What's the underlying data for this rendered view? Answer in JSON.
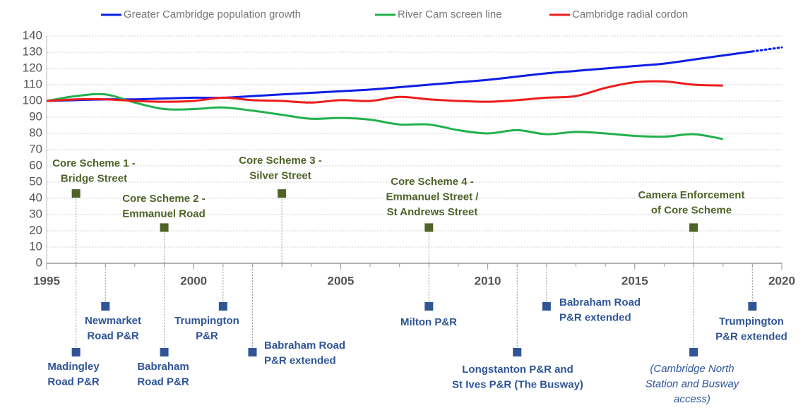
{
  "chart_data": {
    "type": "line",
    "x": [
      1995,
      1996,
      1997,
      1998,
      1999,
      2000,
      2001,
      2002,
      2003,
      2004,
      2005,
      2006,
      2007,
      2008,
      2009,
      2010,
      2011,
      2012,
      2013,
      2014,
      2015,
      2016,
      2017,
      2018,
      2019,
      2020
    ],
    "series": [
      {
        "name": "Greater Cambridge population growth",
        "color": "#0d1ee6",
        "dotted_after": 2019,
        "values": [
          100,
          100.5,
          101,
          101,
          101.5,
          102,
          102,
          103,
          104,
          105,
          106,
          107,
          108.5,
          110,
          111.5,
          113,
          115,
          117,
          118.5,
          120,
          121.5,
          123,
          125.5,
          128,
          130.5,
          133
        ]
      },
      {
        "name": "River Cam screen line",
        "color": "#22b14c",
        "values": [
          100,
          103,
          104,
          99,
          95,
          95,
          96,
          94,
          91.5,
          89,
          89.5,
          88.5,
          85.5,
          85.5,
          82,
          80,
          82,
          79.5,
          81,
          80,
          78.5,
          78,
          79.5,
          76.5,
          null,
          null
        ]
      },
      {
        "name": "Cambridge radial cordon",
        "color": "#ee1c1c",
        "values": [
          100,
          101,
          101,
          100,
          99.5,
          100,
          102,
          100.5,
          100,
          99,
          100.5,
          100,
          102.5,
          101,
          100,
          99.5,
          100.5,
          102,
          103,
          108,
          111.5,
          112,
          110,
          109.5,
          null,
          null
        ]
      }
    ],
    "xlim": [
      1995,
      2020
    ],
    "xticks": [
      1995,
      2000,
      2005,
      2010,
      2015,
      2020
    ],
    "ylim": [
      0,
      140
    ],
    "yticks": [
      0,
      10,
      20,
      30,
      40,
      50,
      60,
      70,
      80,
      90,
      100,
      110,
      120,
      130,
      140
    ],
    "grid": true,
    "legend": "top",
    "events": [
      {
        "x": 1996,
        "y": 43,
        "lines": [
          "Core Scheme 1 -",
          "Bridge Street"
        ]
      },
      {
        "x": 1999,
        "y": 22,
        "lines": [
          "Core Scheme 2 -",
          "Emmanuel Road"
        ]
      },
      {
        "x": 2003,
        "y": 43,
        "lines": [
          "Core Scheme 3 -",
          "Silver Street"
        ]
      },
      {
        "x": 2008,
        "y": 22,
        "lines": [
          "Core Scheme 4 -",
          "Emmanuel Street /",
          "St Andrews Street"
        ]
      },
      {
        "x": 2017,
        "y": 22,
        "lines": [
          "Camera Enforcement",
          "of Core Scheme"
        ]
      }
    ],
    "park_and_ride": [
      {
        "x": 1996,
        "lines": [
          "Madingley",
          "Road P&R"
        ]
      },
      {
        "x": 1997,
        "lines": [
          "Newmarket",
          "Road P&R"
        ]
      },
      {
        "x": 1999,
        "lines": [
          "Babraham",
          "Road P&R"
        ]
      },
      {
        "x": 2001,
        "lines": [
          "Trumpington",
          "P&R"
        ]
      },
      {
        "x": 2002,
        "lines": [
          "Babraham Road",
          "P&R extended"
        ]
      },
      {
        "x": 2008,
        "lines": [
          "Milton P&R"
        ]
      },
      {
        "x": 2011,
        "lines": [
          "Longstanton P&R and",
          "St Ives P&R (The Busway)"
        ]
      },
      {
        "x": 2012,
        "lines": [
          "Babraham Road",
          "P&R extended"
        ]
      },
      {
        "x": 2017,
        "lines": [
          "(Cambridge North",
          "Station and Busway",
          "access)"
        ]
      },
      {
        "x": 2019,
        "lines": [
          "Trumpington",
          "P&R extended"
        ]
      }
    ]
  }
}
